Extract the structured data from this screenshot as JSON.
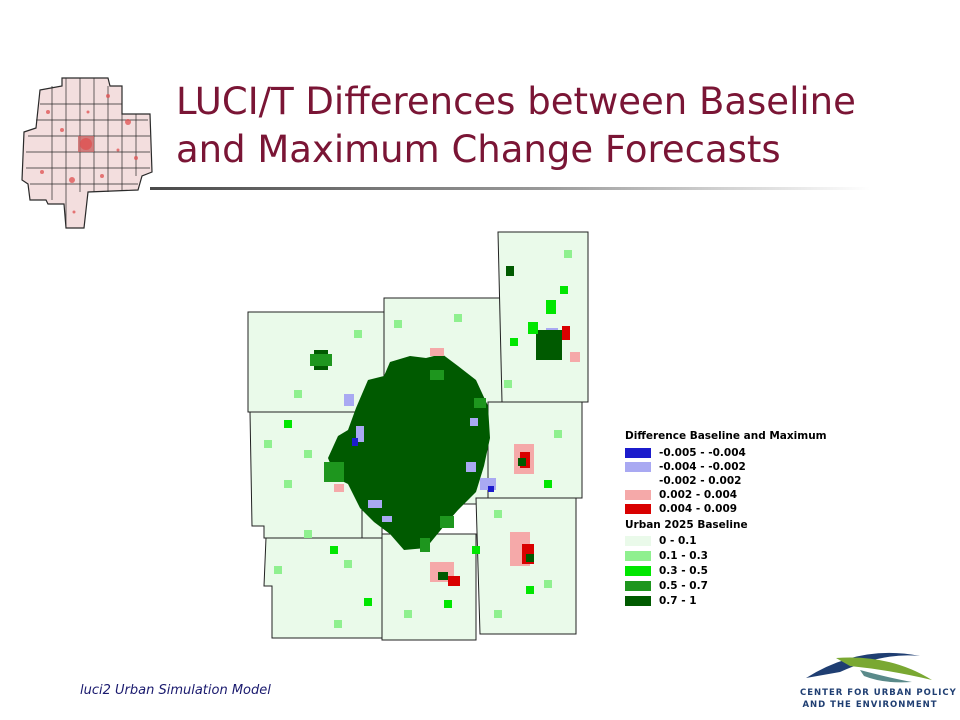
{
  "slide": {
    "title_line1": "LUCI/T Differences between Baseline",
    "title_line2": "and Maximum Change Forecasts",
    "footer": "luci2 Urban Simulation Model"
  },
  "legend": {
    "difference_title": "Difference Baseline and Maximum",
    "difference_items": [
      {
        "label": "-0.005 - -0.004",
        "color": "#1c1ccc"
      },
      {
        "label": "-0.004 - -0.002",
        "color": "#a9a9f2"
      },
      {
        "label": "-0.002 - 0.002",
        "color": "#ffffff"
      },
      {
        "label": "0.002 - 0.004",
        "color": "#f5a9a9"
      },
      {
        "label": "0.004 - 0.009",
        "color": "#d90000"
      }
    ],
    "urban_title": "Urban 2025 Baseline",
    "urban_items": [
      {
        "label": "0 - 0.1",
        "color": "#eafaea"
      },
      {
        "label": "0.1 - 0.3",
        "color": "#8ff08f"
      },
      {
        "label": "0.3 - 0.5",
        "color": "#00e600"
      },
      {
        "label": "0.5 - 0.7",
        "color": "#1e961e"
      },
      {
        "label": "0.7 - 1",
        "color": "#005a00"
      }
    ]
  },
  "logo": {
    "line1": "CENTER FOR URBAN POLICY",
    "line2": "AND THE ENVIRONMENT",
    "colors": {
      "navy": "#1f3e72",
      "green": "#7aa832"
    }
  },
  "colors": {
    "title": "#7a1535",
    "footer": "#1a1a6e"
  }
}
